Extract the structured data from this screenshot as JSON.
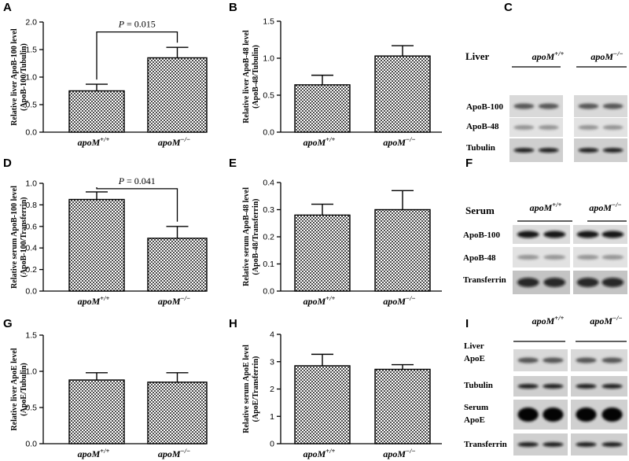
{
  "figure": {
    "chart_data": [
      {
        "panel": "A",
        "type": "bar",
        "categories": [
          "apoM+/+",
          "apoM-/-"
        ],
        "values": [
          0.75,
          1.35
        ],
        "errors": [
          0.12,
          0.19
        ],
        "ylim": [
          0,
          2.0
        ],
        "yticks": [
          "0.0",
          "0.5",
          "1.0",
          "1.5",
          "2.0"
        ],
        "yticks_num": [
          0,
          0.5,
          1.0,
          1.5,
          2.0
        ],
        "ylabel_1": "Relative liver ApoB-100 level",
        "ylabel_2": "(ApoB-100/Tubulin)",
        "annotation": "P = 0.015",
        "bracket_top": 1.82
      },
      {
        "panel": "B",
        "type": "bar",
        "categories": [
          "apoM+/+",
          "apoM-/-"
        ],
        "values": [
          0.64,
          1.03
        ],
        "errors": [
          0.13,
          0.14
        ],
        "ylim": [
          0,
          1.5
        ],
        "yticks": [
          "0.0",
          "0.5",
          "1.0",
          "1.5"
        ],
        "yticks_num": [
          0,
          0.5,
          1.0,
          1.5
        ],
        "ylabel_1": "Relative liver ApoB-48 level",
        "ylabel_2": "(ApoB-48/Tubulin)"
      },
      {
        "panel": "D",
        "type": "bar",
        "categories": [
          "apoM+/+",
          "apoM-/-"
        ],
        "values": [
          0.85,
          0.49
        ],
        "errors": [
          0.07,
          0.11
        ],
        "ylim": [
          0,
          1.0
        ],
        "yticks": [
          "0.0",
          "0.2",
          "0.4",
          "0.6",
          "0.8",
          "1.0"
        ],
        "yticks_num": [
          0,
          0.2,
          0.4,
          0.6,
          0.8,
          1.0
        ],
        "ylabel_1": "Relative serum ApoB-100 level",
        "ylabel_2": "(ApoB-100/Transferrin)",
        "annotation": "P = 0.041",
        "bracket_top": 0.95
      },
      {
        "panel": "E",
        "type": "bar",
        "categories": [
          "apoM+/+",
          "apoM-/-"
        ],
        "values": [
          0.28,
          0.3
        ],
        "errors": [
          0.04,
          0.07
        ],
        "ylim": [
          0,
          0.4
        ],
        "yticks": [
          "0.0",
          "0.1",
          "0.2",
          "0.3",
          "0.4"
        ],
        "yticks_num": [
          0,
          0.1,
          0.2,
          0.3,
          0.4
        ],
        "ylabel_1": "Relative serum ApoB-48 level",
        "ylabel_2": "(ApoB-48/Transferrin)"
      },
      {
        "panel": "G",
        "type": "bar",
        "categories": [
          "apoM+/+",
          "apoM-/-"
        ],
        "values": [
          0.88,
          0.85
        ],
        "errors": [
          0.1,
          0.13
        ],
        "ylim": [
          0,
          1.5
        ],
        "yticks": [
          "0.0",
          "0.5",
          "1.0",
          "1.5"
        ],
        "yticks_num": [
          0,
          0.5,
          1.0,
          1.5
        ],
        "ylabel_1": "Relative liver ApoE level",
        "ylabel_2": "(ApoE/Tubulin)"
      },
      {
        "panel": "H",
        "type": "bar",
        "categories": [
          "apoM+/+",
          "apoM-/-"
        ],
        "values": [
          2.85,
          2.72
        ],
        "errors": [
          0.42,
          0.17
        ],
        "ylim": [
          0,
          4
        ],
        "yticks": [
          "0",
          "1",
          "2",
          "3",
          "4"
        ],
        "yticks_num": [
          0,
          1,
          2,
          3,
          4
        ],
        "ylabel_1": "Relative serum ApoE level",
        "ylabel_2": "(ApoE/Transferrin)"
      }
    ],
    "blots": [
      {
        "panel": "C",
        "title": "Liver",
        "group1": "apoM",
        "group1_sup": "+/+",
        "group2": "apoM",
        "group2_sup": "−/−",
        "rows": [
          {
            "label": "ApoB-100"
          },
          {
            "label": "ApoB-48"
          },
          {
            "label": "Tubulin"
          }
        ]
      },
      {
        "panel": "F",
        "title": "Serum",
        "group1": "apoM",
        "group1_sup": "+/+",
        "group2": "apoM",
        "group2_sup": "−/−",
        "rows": [
          {
            "label": "ApoB-100"
          },
          {
            "label": "ApoB-48"
          },
          {
            "label": "Transferrin"
          }
        ]
      },
      {
        "panel": "I",
        "title": "",
        "group1": "apoM",
        "group1_sup": "+/+",
        "group2": "apoM",
        "group2_sup": "−/−",
        "rows": [
          {
            "label": "Liver",
            "label2": "ApoE"
          },
          {
            "label": "Tubulin"
          },
          {
            "label": "Serum",
            "label2": "ApoE"
          },
          {
            "label": "Transferrin"
          }
        ]
      }
    ],
    "x_category_base": "apoM",
    "x_category_sups": [
      "+/+",
      "−/−"
    ]
  }
}
